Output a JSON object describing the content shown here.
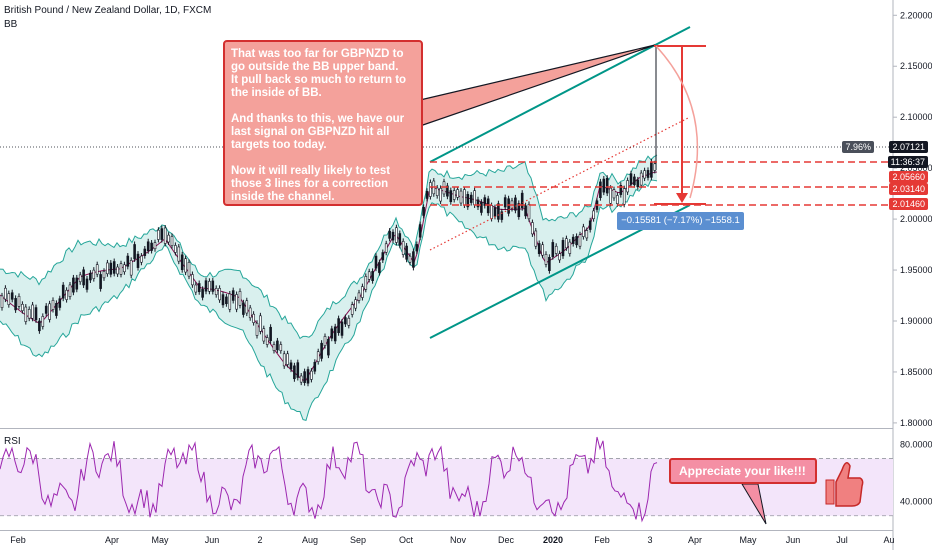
{
  "header": {
    "title": "British Pound / New Zealand Dollar, 1D, FXCM",
    "indicator": "BB"
  },
  "rsi_panel": {
    "label": "RSI"
  },
  "note": {
    "text": "That was too far for GBPNZD to go outside the BB upper band.\nIt pull back so much to return to the inside of BB.\n\nAnd thanks to this, we have our last signal on GBPNZD hit all targets too today.\n\nNow it will really likely to test those 3 lines for a correction inside the channel."
  },
  "like_callout": {
    "text": "Appreciate your like!!!"
  },
  "measure_label": "−0.15581 (−7.17%) −1558.1",
  "price_axis": {
    "ticks": [
      "2.20000",
      "2.15000",
      "2.10000",
      "2.05000",
      "2.00000",
      "1.95000",
      "1.90000",
      "1.85000",
      "1.80000"
    ],
    "tick_values": [
      2.2,
      2.15,
      2.1,
      2.05,
      2.0,
      1.95,
      1.9,
      1.85,
      1.8
    ],
    "range": [
      1.795,
      2.215
    ]
  },
  "rsi_axis": {
    "ticks": [
      "80.0000",
      "40.0000"
    ]
  },
  "price_tags": {
    "change_pct": "7.96%",
    "current": "2.07121",
    "countdown": "11:36:37",
    "level1": "2.05660",
    "level2": "2.03140",
    "level3": "2.01460"
  },
  "time_axis": [
    "Feb",
    "Apr",
    "May",
    "Jun",
    "2",
    "Aug",
    "Sep",
    "Oct",
    "Nov",
    "Dec",
    "2020",
    "Feb",
    "3",
    "Apr",
    "May",
    "Jun",
    "Jul",
    "Au"
  ],
  "colors": {
    "candle": "#131722",
    "bb_fill": "#d9f0ee",
    "bb_line": "#26a69a",
    "basis": "#880e4f",
    "channel": "#009688",
    "red": "#e53935",
    "rsi": "#9c27b0",
    "rsi_fill": "#f3e5fa"
  }
}
